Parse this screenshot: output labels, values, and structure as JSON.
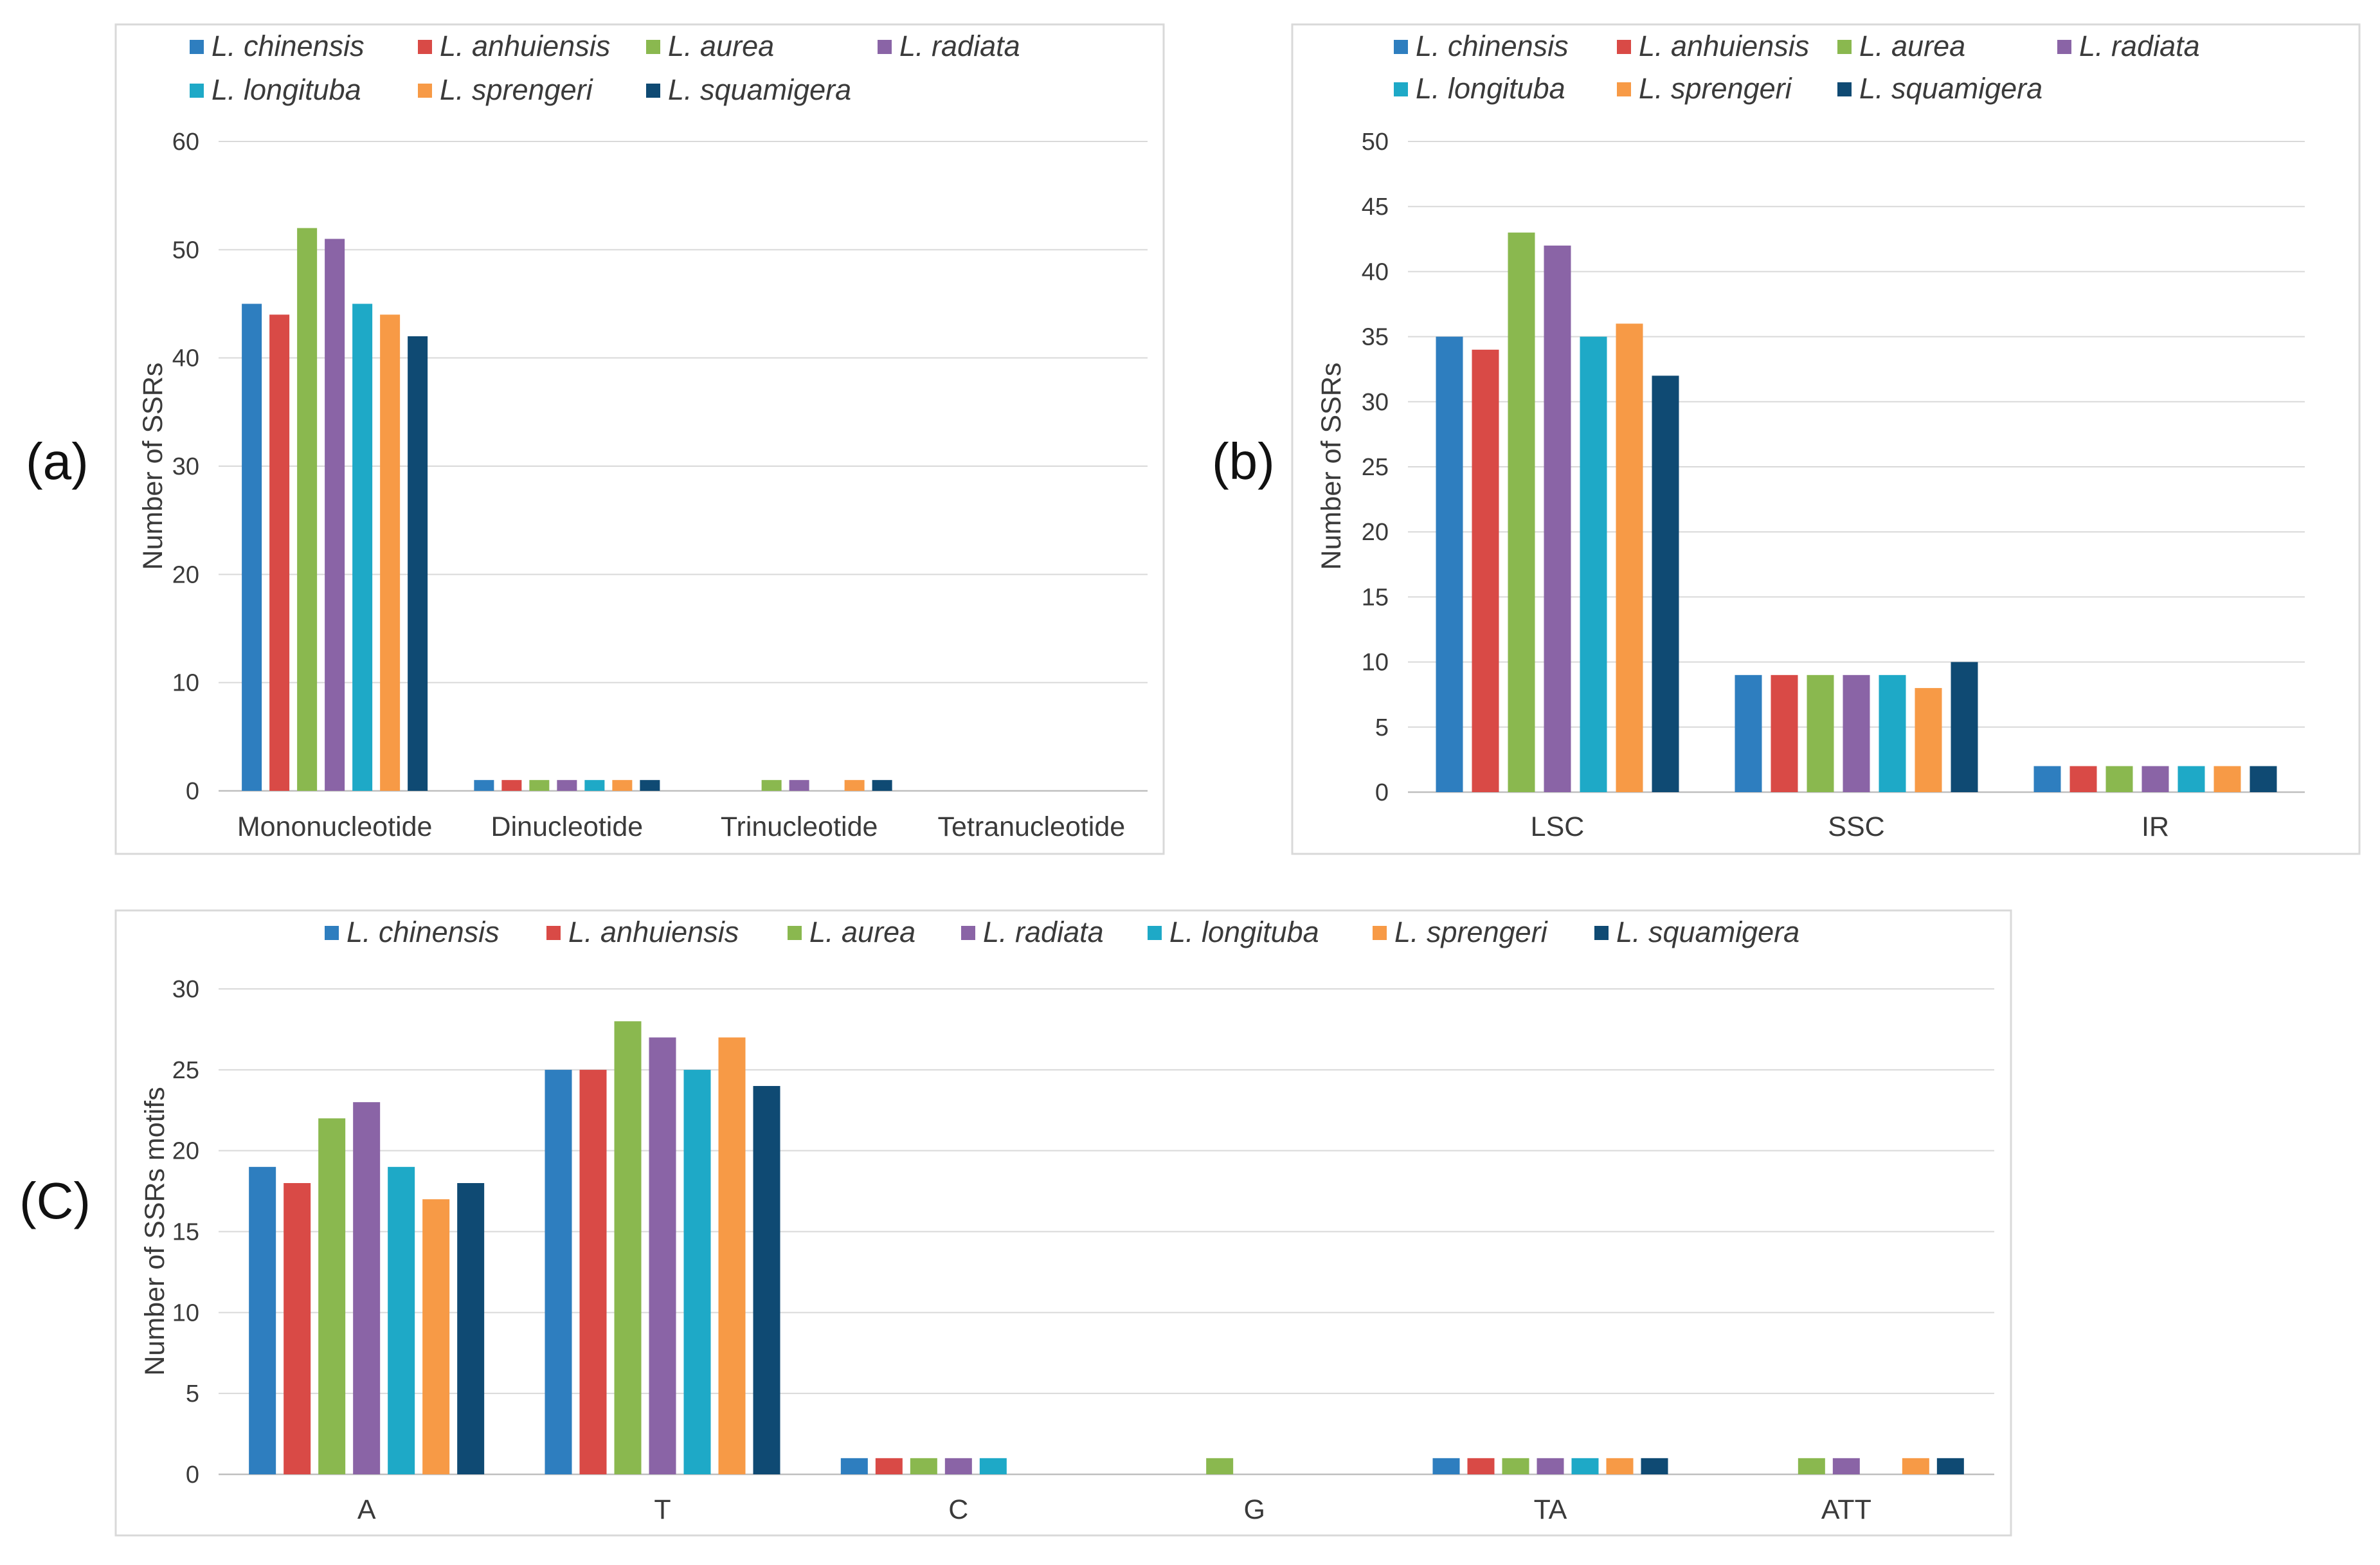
{
  "panel_labels": [
    "(a)",
    "(b)",
    "(C)"
  ],
  "legend": {
    "species": [
      "L. chinensis",
      "L. anhuiensis",
      "L. aurea",
      "L. radiata",
      "L. longituba",
      "L. sprengeri",
      "L. squamigera"
    ],
    "colors": [
      "#2e7ebf",
      "#d94a46",
      "#8ab84f",
      "#8a64a6",
      "#1ea9c7",
      "#f79a46",
      "#0f4a73"
    ]
  },
  "chart_data": [
    {
      "id": "a",
      "type": "bar",
      "title": "",
      "xlabel": "",
      "ylabel": "Number of SSRs",
      "ylim": [
        0,
        60
      ],
      "yticks": [
        0,
        10,
        20,
        30,
        40,
        50,
        60
      ],
      "grid": true,
      "legend_position": "top",
      "categories": [
        "Mononucleotide",
        "Dinucleotide",
        "Trinucleotide",
        "Tetranucleotide"
      ],
      "series": [
        {
          "name": "L. chinensis",
          "values": [
            45,
            1,
            0,
            0
          ]
        },
        {
          "name": "L. anhuiensis",
          "values": [
            44,
            1,
            0,
            0
          ]
        },
        {
          "name": "L. aurea",
          "values": [
            52,
            1,
            1,
            0
          ]
        },
        {
          "name": "L. radiata",
          "values": [
            51,
            1,
            1,
            0
          ]
        },
        {
          "name": "L. longituba",
          "values": [
            45,
            1,
            0,
            0
          ]
        },
        {
          "name": "L. sprengeri",
          "values": [
            44,
            1,
            1,
            0
          ]
        },
        {
          "name": "L. squamigera",
          "values": [
            42,
            1,
            1,
            0
          ]
        }
      ]
    },
    {
      "id": "b",
      "type": "bar",
      "title": "",
      "xlabel": "",
      "ylabel": "Number of SSRs",
      "ylim": [
        0,
        50
      ],
      "yticks": [
        0,
        5,
        10,
        15,
        20,
        25,
        30,
        35,
        40,
        45,
        50
      ],
      "grid": true,
      "legend_position": "top",
      "categories": [
        "LSC",
        "SSC",
        "IR"
      ],
      "series": [
        {
          "name": "L. chinensis",
          "values": [
            35,
            9,
            2
          ]
        },
        {
          "name": "L. anhuiensis",
          "values": [
            34,
            9,
            2
          ]
        },
        {
          "name": "L. aurea",
          "values": [
            43,
            9,
            2
          ]
        },
        {
          "name": "L. radiata",
          "values": [
            42,
            9,
            2
          ]
        },
        {
          "name": "L. longituba",
          "values": [
            35,
            9,
            2
          ]
        },
        {
          "name": "L. sprengeri",
          "values": [
            36,
            8,
            2
          ]
        },
        {
          "name": "L. squamigera",
          "values": [
            32,
            10,
            2
          ]
        }
      ]
    },
    {
      "id": "c",
      "type": "bar",
      "title": "",
      "xlabel": "",
      "ylabel": "Number of SSRs motifs",
      "ylim": [
        0,
        30
      ],
      "yticks": [
        0,
        5,
        10,
        15,
        20,
        25,
        30
      ],
      "grid": true,
      "legend_position": "top",
      "categories": [
        "A",
        "T",
        "C",
        "G",
        "TA",
        "ATT"
      ],
      "series": [
        {
          "name": "L. chinensis",
          "values": [
            19,
            25,
            1,
            0,
            1,
            0
          ]
        },
        {
          "name": "L. anhuiensis",
          "values": [
            18,
            25,
            1,
            0,
            1,
            0
          ]
        },
        {
          "name": "L. aurea",
          "values": [
            22,
            28,
            1,
            1,
            1,
            1
          ]
        },
        {
          "name": "L. radiata",
          "values": [
            23,
            27,
            1,
            0,
            1,
            1
          ]
        },
        {
          "name": "L. longituba",
          "values": [
            19,
            25,
            1,
            0,
            1,
            0
          ]
        },
        {
          "name": "L. sprengeri",
          "values": [
            17,
            27,
            0,
            0,
            1,
            1
          ]
        },
        {
          "name": "L. squamigera",
          "values": [
            18,
            24,
            0,
            0,
            1,
            1
          ]
        }
      ]
    }
  ]
}
